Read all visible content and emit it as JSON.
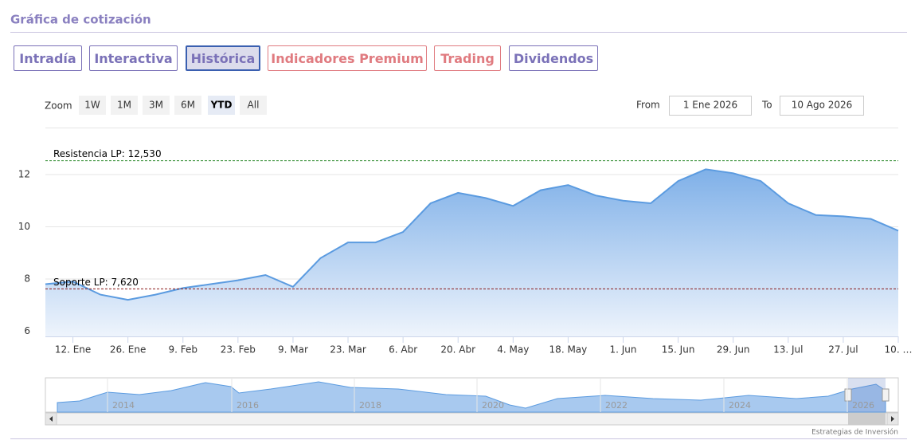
{
  "header": {
    "title": "Gráfica de cotización"
  },
  "tabs": [
    {
      "label": "Intradía",
      "color": "#7b72b8",
      "active": false
    },
    {
      "label": "Interactiva",
      "color": "#7b72b8",
      "active": false
    },
    {
      "label": "Histórica",
      "color": "#7b72b8",
      "active": true
    },
    {
      "label": "Indicadores Premium",
      "color": "#e07b80",
      "active": false
    },
    {
      "label": "Trading",
      "color": "#e07b80",
      "active": false
    },
    {
      "label": "Dividendos",
      "color": "#7b72b8",
      "active": false
    }
  ],
  "zoom": {
    "label": "Zoom",
    "buttons": [
      "1W",
      "1M",
      "3M",
      "6M",
      "YTD",
      "All"
    ],
    "selected": "YTD"
  },
  "range": {
    "from_label": "From",
    "from": "1 Ene 2026",
    "to_label": "To",
    "to": "10 Ago 2026"
  },
  "chart_data": {
    "type": "area",
    "categories": [
      null,
      "12. Ene",
      null,
      "26. Ene",
      null,
      "9. Feb",
      null,
      "23. Feb",
      null,
      "9. Mar",
      null,
      "23. Mar",
      null,
      "6. Abr",
      null,
      "20. Abr",
      null,
      "4. May",
      null,
      "18. May",
      null,
      "1. Jun",
      null,
      "15. Jun",
      null,
      "29. Jun",
      null,
      "13. Jul",
      null,
      "27. Jul",
      null,
      "10. …"
    ],
    "values": [
      7.8,
      7.9,
      7.4,
      7.2,
      7.4,
      7.65,
      7.8,
      7.95,
      8.15,
      7.7,
      8.8,
      9.4,
      9.4,
      9.8,
      10.9,
      11.3,
      11.1,
      10.8,
      11.4,
      11.6,
      11.2,
      11.0,
      10.9,
      11.75,
      12.2,
      12.05,
      11.75,
      10.9,
      10.45,
      10.4,
      10.3,
      9.85
    ],
    "color": "#5b9be0",
    "ylim": [
      5.8,
      13.8
    ],
    "yticks": [
      6,
      8,
      10,
      12
    ],
    "grid": true,
    "plot_lines": [
      {
        "label": "Resistencia LP: 12,530",
        "value": 12.53,
        "color": "#2a8a2a"
      },
      {
        "label": "Soporte LP: 7,620",
        "value": 7.62,
        "color": "#8b1a1a"
      }
    ]
  },
  "navigator": {
    "years": [
      "2014",
      "2016",
      "2018",
      "2020",
      "2022",
      "2024",
      "2026"
    ]
  },
  "credit": "Estrategias de Inversión"
}
